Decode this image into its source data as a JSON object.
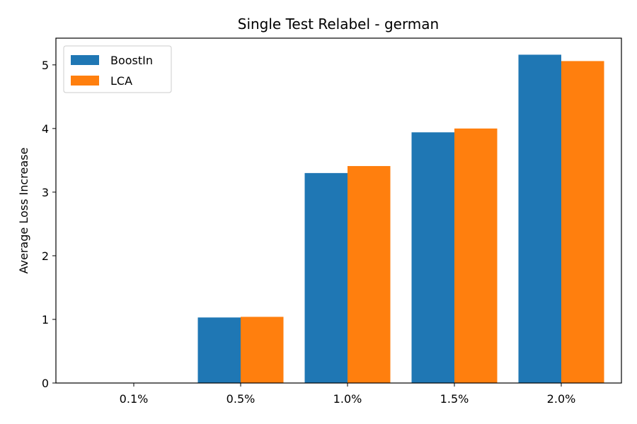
{
  "chart_data": {
    "type": "bar",
    "title": "Single Test Relabel - german",
    "xlabel": "",
    "ylabel": "Average Loss Increase",
    "categories": [
      "0.1%",
      "0.5%",
      "1.0%",
      "1.5%",
      "2.0%"
    ],
    "series": [
      {
        "name": "BoostIn",
        "color": "#1f77b4",
        "values": [
          0.0,
          1.03,
          3.3,
          3.94,
          5.16
        ]
      },
      {
        "name": "LCA",
        "color": "#ff7f0e",
        "values": [
          0.0,
          1.04,
          3.41,
          4.0,
          5.06
        ]
      }
    ],
    "ylim": [
      0,
      5.42
    ],
    "yticks": [
      0,
      1,
      2,
      3,
      4,
      5
    ],
    "legend": "top-left",
    "grid": false
  }
}
